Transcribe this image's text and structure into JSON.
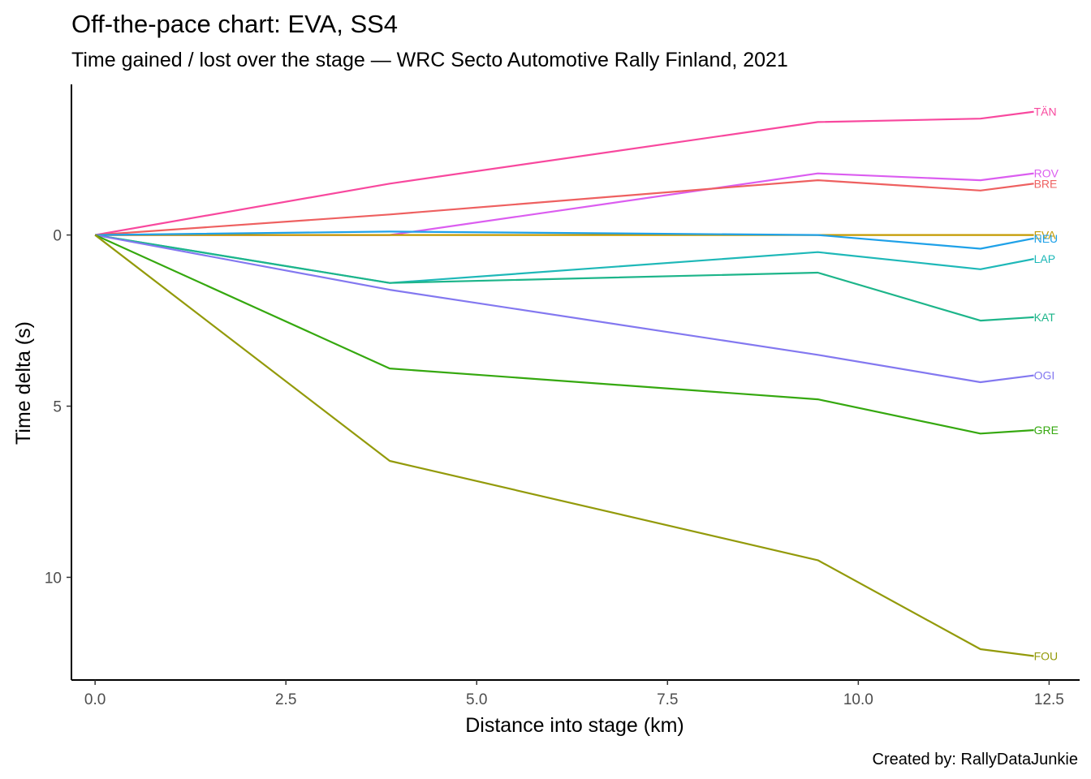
{
  "chart_data": {
    "type": "line",
    "title": "Off-the-pace chart: EVA, SS4",
    "subtitle": "Time gained / lost over the stage — WRC Secto Automotive Rally Finland, 2021",
    "xlabel": "Distance into stage (km)",
    "ylabel": "Time delta (s)",
    "caption": "Created by: RallyDataJunkie",
    "y_reversed": true,
    "xlim": [
      -0.31,
      12.9
    ],
    "ylim": [
      -4.4,
      13.0
    ],
    "x_ticks": [
      0,
      2.5,
      5,
      7.5,
      10,
      12.5
    ],
    "x_tick_labels": [
      "0.0",
      "2.5",
      "5.0",
      "7.5",
      "10.0",
      "12.5"
    ],
    "y_ticks": [
      0,
      5,
      10
    ],
    "y_tick_labels": [
      "0",
      "5",
      "10"
    ],
    "grid": false,
    "legend": "none (direct line-end labels)",
    "x": [
      0,
      3.86,
      9.47,
      11.6,
      12.3
    ],
    "series": [
      {
        "name": "TÄN",
        "color": "#F8489E",
        "values": [
          0,
          -1.5,
          -3.3,
          -3.4,
          -3.6
        ]
      },
      {
        "name": "ROV",
        "color": "#DB5DF0",
        "values": [
          0,
          0,
          -1.8,
          -1.6,
          -1.8
        ]
      },
      {
        "name": "BRE",
        "color": "#EE6060",
        "values": [
          0,
          -0.6,
          -1.6,
          -1.3,
          -1.5
        ]
      },
      {
        "name": "EVA",
        "color": "#C49A00",
        "values": [
          0,
          0,
          0,
          0,
          0
        ]
      },
      {
        "name": "NEU",
        "color": "#1FA1E8",
        "values": [
          0,
          -0.1,
          0,
          0.4,
          0.1
        ]
      },
      {
        "name": "LAP",
        "color": "#1EB8B8",
        "values": [
          0,
          1.4,
          0.5,
          1.0,
          0.7
        ]
      },
      {
        "name": "KAT",
        "color": "#1DB58A",
        "values": [
          0,
          1.4,
          1.1,
          2.5,
          2.4
        ]
      },
      {
        "name": "OGI",
        "color": "#8378F0",
        "values": [
          0,
          1.6,
          3.5,
          4.3,
          4.1
        ]
      },
      {
        "name": "GRE",
        "color": "#35A80F",
        "values": [
          0,
          3.9,
          4.8,
          5.8,
          5.7
        ]
      },
      {
        "name": "FOU",
        "color": "#939A0A",
        "values": [
          0,
          6.6,
          9.5,
          12.1,
          12.3
        ]
      }
    ]
  }
}
